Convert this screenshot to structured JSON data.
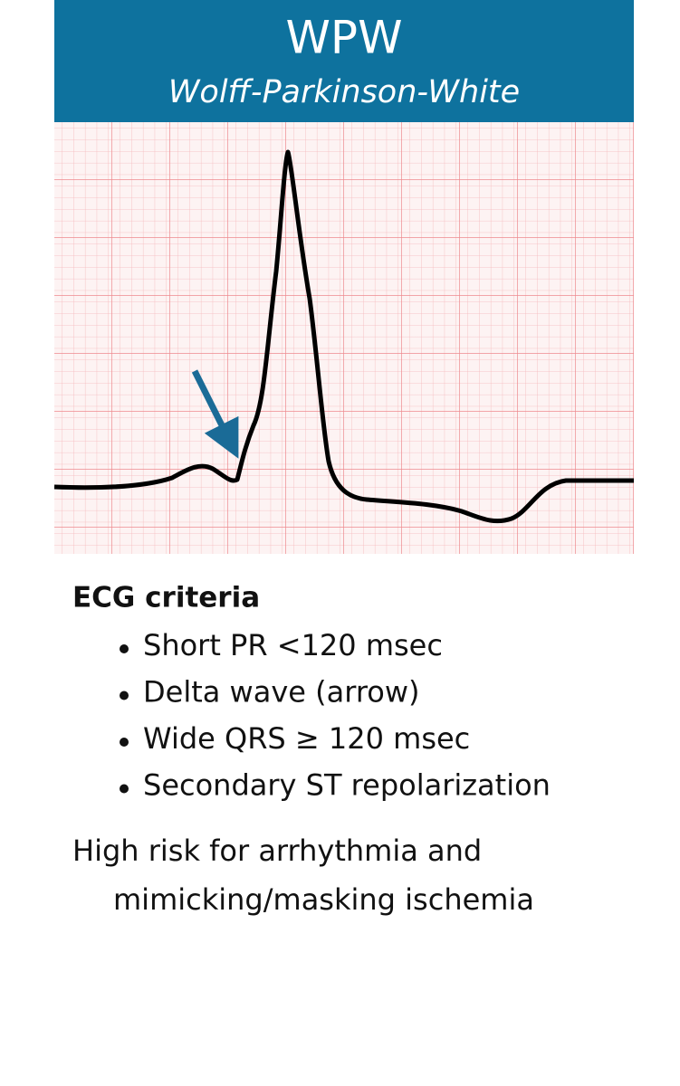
{
  "header": {
    "title": "WPW",
    "subtitle": "Wolff-Parkinson-White"
  },
  "criteria": {
    "heading": "ECG criteria",
    "items": [
      "Short PR <120 msec",
      "Delta wave (arrow)",
      "Wide QRS ≥ 120 msec",
      "Secondary ST repolarization"
    ]
  },
  "note": {
    "lines": [
      "High risk for arrhythmia and",
      "mimicking/masking ischemia"
    ]
  }
}
